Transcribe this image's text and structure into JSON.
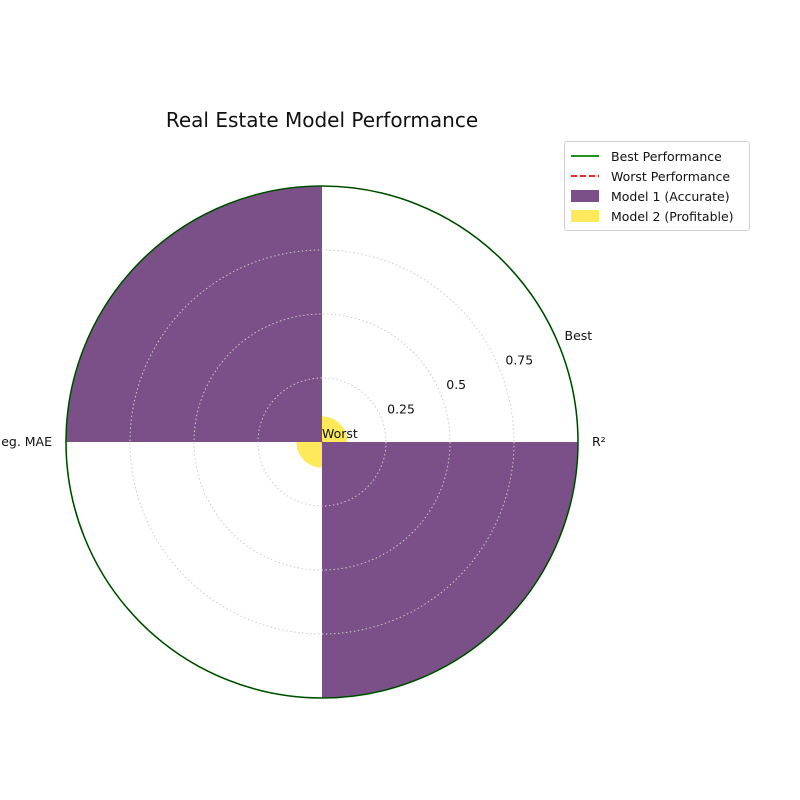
{
  "chart_data": {
    "type": "polar_bar",
    "title": "Real Estate Model Performance",
    "categories": [
      "R²",
      "Neg. MAE"
    ],
    "rlim": [
      0,
      1
    ],
    "radial_ticks": [
      {
        "value": 0,
        "label": "Worst"
      },
      {
        "value": 0.25,
        "label": "0.25"
      },
      {
        "value": 0.5,
        "label": "0.5"
      },
      {
        "value": 0.75,
        "label": "0.75"
      },
      {
        "value": 1,
        "label": "Best"
      }
    ],
    "grid": true,
    "legend_position": "top-right",
    "series": [
      {
        "name": "Best Performance",
        "kind": "line",
        "style": "solid",
        "color": "#008000",
        "values": [
          1,
          1
        ]
      },
      {
        "name": "Worst Performance",
        "kind": "line",
        "style": "dashed",
        "color": "#ff0000",
        "values": [
          0,
          0
        ]
      },
      {
        "name": "Model 1 (Accurate)",
        "kind": "bar",
        "color": "#7b4f87",
        "values": [
          1.0,
          1.0
        ]
      },
      {
        "name": "Model 2 (Profitable)",
        "kind": "bar",
        "color": "#fde95a",
        "values": [
          0.1,
          0.1
        ]
      }
    ]
  }
}
